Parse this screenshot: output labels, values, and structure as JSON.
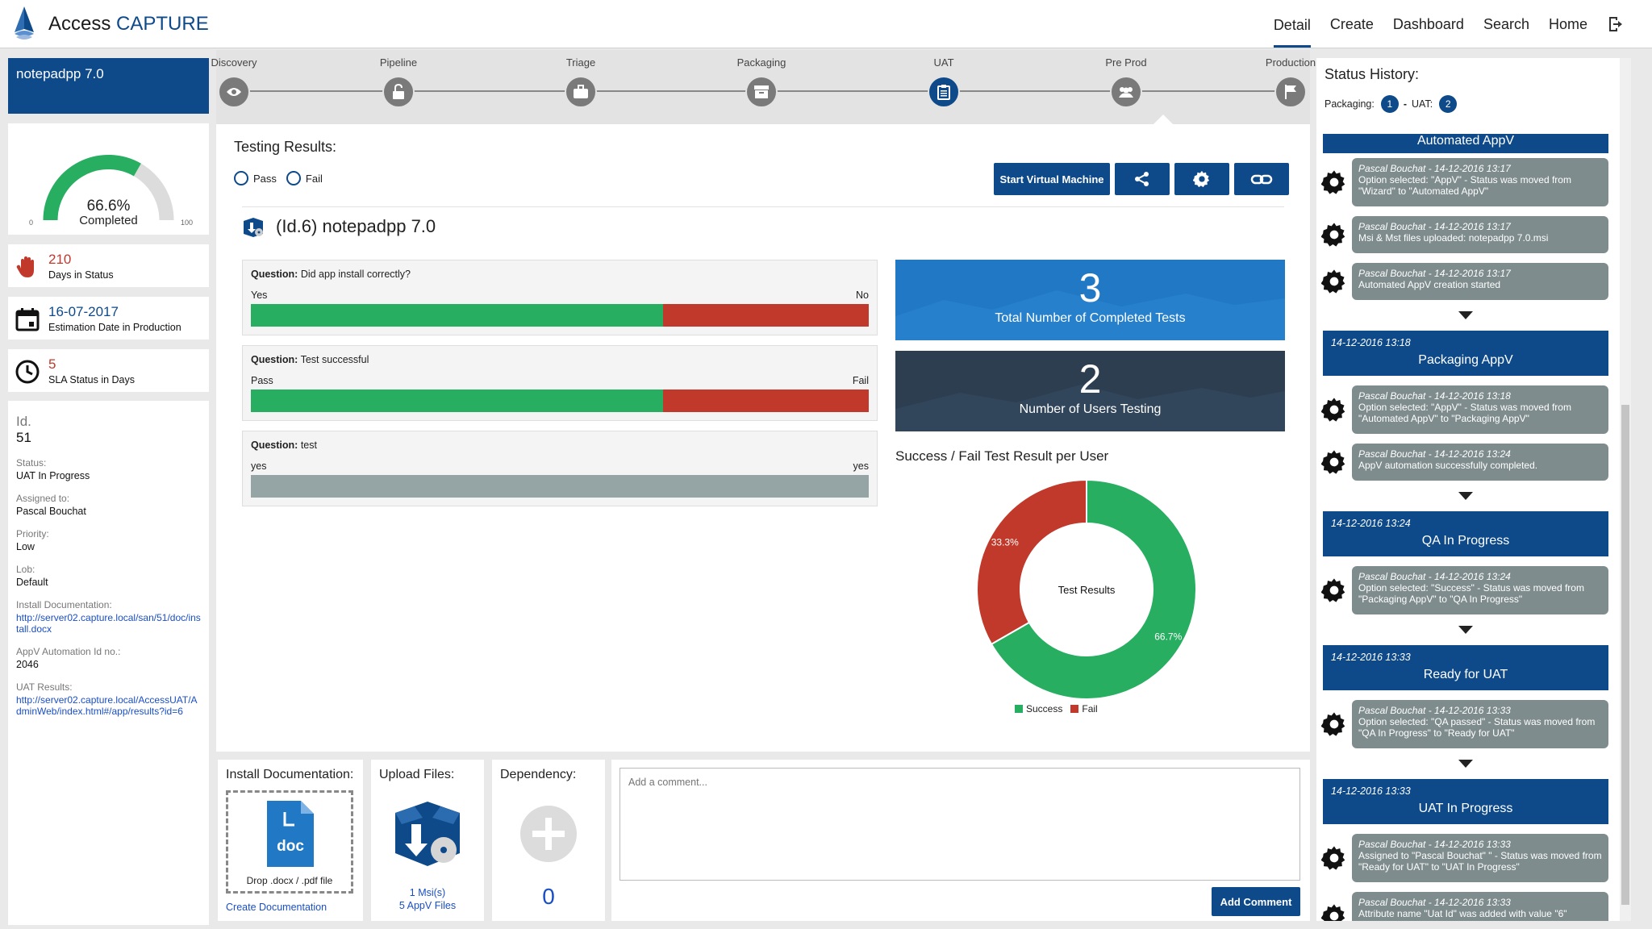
{
  "header": {
    "app_name_prefix": "Access",
    "app_name_suffix": "CAPTURE",
    "nav": [
      "Detail",
      "Create",
      "Dashboard",
      "Search",
      "Home"
    ]
  },
  "left": {
    "app_title": "notepadpp 7.0",
    "gauge": {
      "percent_text": "66.6%",
      "label": "Completed",
      "min": "0",
      "max": "100",
      "value": 66.6
    },
    "days_in_status": {
      "value": "210",
      "label": "Days in Status"
    },
    "estimation": {
      "value": "16-07-2017",
      "label": "Estimation Date in Production"
    },
    "sla": {
      "value": "5",
      "label": "SLA Status in Days"
    },
    "info": {
      "id_label": "Id.",
      "id_value": "51",
      "status_label": "Status:",
      "status_value": "UAT In Progress",
      "assigned_label": "Assigned to:",
      "assigned_value": "Pascal Bouchat",
      "priority_label": "Priority:",
      "priority_value": "Low",
      "lob_label": "Lob:",
      "lob_value": "Default",
      "install_doc_label": "Install Documentation:",
      "install_doc_link": "http://server02.capture.local/san/51/doc/install.docx",
      "appv_label": "AppV Automation Id no.:",
      "appv_value": "2046",
      "uat_label": "UAT Results:",
      "uat_link": "http://server02.capture.local/AccessUAT/AdminWeb/index.html#/app/results?id=6"
    }
  },
  "pipeline": {
    "stages": [
      "Discovery",
      "Pipeline",
      "Triage",
      "Packaging",
      "UAT",
      "Pre Prod",
      "Production"
    ],
    "active": "UAT"
  },
  "testing": {
    "title": "Testing Results:",
    "radio_pass": "Pass",
    "radio_fail": "Fail",
    "start_vm": "Start Virtual Machine",
    "app_heading": "(Id.6) notepadpp 7.0",
    "questions": [
      {
        "label": "Question:",
        "text": "Did app install correctly?",
        "left": "Yes",
        "right": "No",
        "success": 0.667,
        "fail": 0.333
      },
      {
        "label": "Question:",
        "text": "Test successful",
        "left": "Pass",
        "right": "Fail",
        "success": 0.667,
        "fail": 0.333
      },
      {
        "label": "Question:",
        "text": "test",
        "left": "yes",
        "right": "yes",
        "success": 0,
        "fail": 0
      }
    ],
    "tile1": {
      "value": "3",
      "label": "Total Number of Completed Tests"
    },
    "tile2": {
      "value": "2",
      "label": "Number of Users Testing"
    },
    "colors": {
      "success": "#27ae60",
      "fail": "#c0392b",
      "neutral": "#95a5a6"
    }
  },
  "chart_data": {
    "type": "pie",
    "title": "Success / Fail Test Result per User",
    "center_label": "Test Results",
    "categories": [
      "Success",
      "Fail"
    ],
    "values": [
      66.7,
      33.3
    ],
    "value_labels": [
      "66.7%",
      "33.3%"
    ],
    "legend_position": "bottom"
  },
  "bottom": {
    "install_doc_title": "Install Documentation:",
    "doc_icon_text": "doc",
    "drop_text": "Drop .docx / .pdf file",
    "create_doc": "Create Documentation",
    "upload_title": "Upload Files:",
    "msi_link": "1 Msi(s)",
    "appv_link": "5 AppV Files",
    "dependency_title": "Dependency:",
    "dependency_count": "0",
    "comment_placeholder": "Add a comment...",
    "add_comment": "Add Comment"
  },
  "history": {
    "title": "Status History:",
    "packaging_label": "Packaging:",
    "packaging_count": "1",
    "separator": "-",
    "uat_label": "UAT:",
    "uat_count": "2",
    "partial_block": "Automated AppV",
    "entries": [
      {
        "type": "log",
        "author": "Pascal Bouchat - 14-12-2016 13:17",
        "text": "Option selected: \"AppV\" - Status was moved from \"Wizard\" to \"Automated AppV\""
      },
      {
        "type": "log",
        "author": "Pascal Bouchat - 14-12-2016 13:17",
        "text": "Msi & Mst files uploaded: notepadpp 7.0.msi"
      },
      {
        "type": "log",
        "author": "Pascal Bouchat - 14-12-2016 13:17",
        "text": "Automated AppV creation started"
      },
      {
        "type": "status",
        "date": "14-12-2016 13:18",
        "title": "Packaging AppV"
      },
      {
        "type": "log",
        "author": "Pascal Bouchat - 14-12-2016 13:18",
        "text": "Option selected: \"AppV\" - Status was moved from \"Automated AppV\" to \"Packaging AppV\""
      },
      {
        "type": "log",
        "author": "Pascal Bouchat - 14-12-2016 13:24",
        "text": "AppV automation successfully completed."
      },
      {
        "type": "status",
        "date": "14-12-2016 13:24",
        "title": "QA In Progress"
      },
      {
        "type": "log",
        "author": "Pascal Bouchat - 14-12-2016 13:24",
        "text": "Option selected: \"Success\" - Status was moved from \"Packaging AppV\" to \"QA In Progress\""
      },
      {
        "type": "status",
        "date": "14-12-2016 13:33",
        "title": "Ready for UAT"
      },
      {
        "type": "log",
        "author": "Pascal Bouchat - 14-12-2016 13:33",
        "text": "Option selected: \"QA passed\" - Status was moved from \"QA In Progress\" to \"Ready for UAT\""
      },
      {
        "type": "status",
        "date": "14-12-2016 13:33",
        "title": "UAT In Progress"
      },
      {
        "type": "log",
        "author": "Pascal Bouchat - 14-12-2016 13:33",
        "text": "Assigned to \"Pascal Bouchat\" \" - Status was moved from \"Ready for UAT\" to \"UAT In Progress\""
      },
      {
        "type": "log",
        "author": "Pascal Bouchat - 14-12-2016 13:33",
        "text": "Attribute name \"Uat Id\" was added with value \"6\""
      }
    ]
  }
}
